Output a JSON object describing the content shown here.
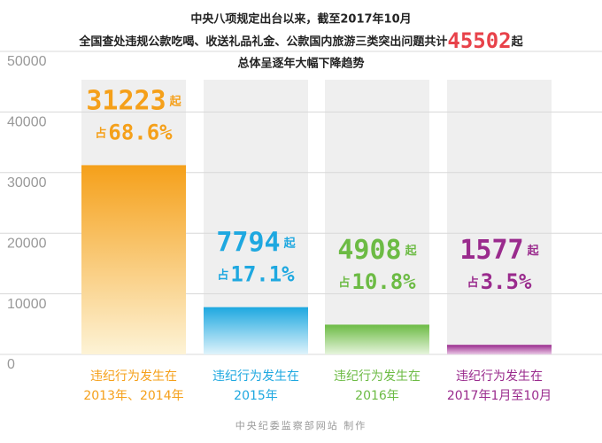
{
  "chart_data": {
    "type": "bar",
    "title": "中央八项规定出台以来，截至2017年10月",
    "subtitle": {
      "before": "全国查处违规公款吃喝、收送礼品礼金、公款国内旅游三类突出问题共计",
      "total": "45502",
      "after": "起"
    },
    "subtitle2": "总体呈逐年大幅下降趋势",
    "categories": [
      [
        "违纪行为发生在",
        "2013年、2014年"
      ],
      [
        "违纪行为发生在",
        "2015年"
      ],
      [
        "违纪行为发生在",
        "2016年"
      ],
      [
        "违纪行为发生在",
        "2017年1月至10月"
      ]
    ],
    "values": [
      31223,
      7794,
      4908,
      1577
    ],
    "unit": "起",
    "share_prefix": "占",
    "shares": [
      68.6,
      17.1,
      10.8,
      3.5
    ],
    "share_labels": [
      "68.6%",
      "17.1%",
      "10.8%",
      "3.5%"
    ],
    "colors": [
      "#f5a01a",
      "#1ea8e0",
      "#6cbb44",
      "#9a2b8d"
    ],
    "ylim": [
      0,
      50000
    ],
    "yticks": [
      0,
      10000,
      20000,
      30000,
      40000,
      50000
    ],
    "grid": true,
    "footer": "中央纪委监察部网站 制作"
  }
}
